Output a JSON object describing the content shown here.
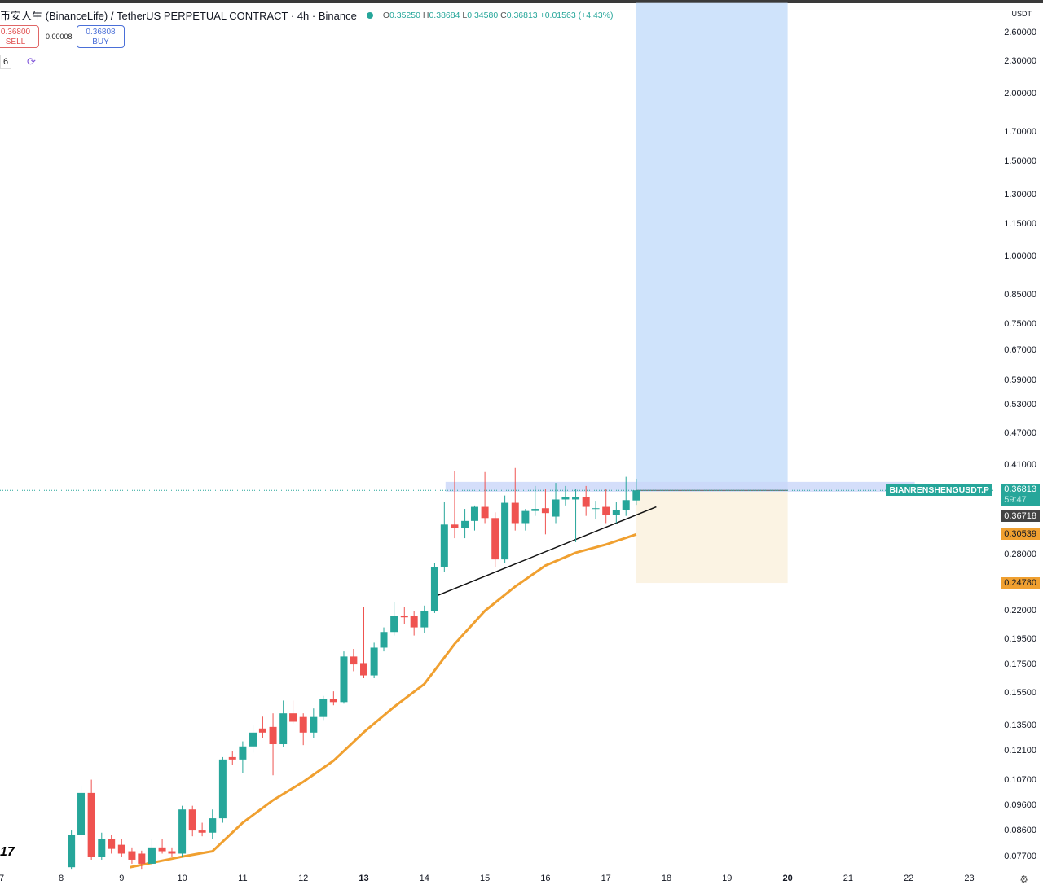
{
  "header": {
    "title": "币安人生 (BinanceLife) / TetherUS PERPETUAL CONTRACT · 4h · Binance",
    "o_label": "O",
    "o": "0.35250",
    "h_label": "H",
    "h": "0.38684",
    "l_label": "L",
    "l": "0.34580",
    "c_label": "C",
    "c": "0.36813",
    "change": "+0.01563 (+4.43%)"
  },
  "trade": {
    "sell_price": "0.36800",
    "sell_label": "SELL",
    "spread": "0.00008",
    "buy_price": "0.36808",
    "buy_label": "BUY",
    "misc": "6"
  },
  "axis": {
    "unit": "USDT",
    "price_labels": [
      "2.60000",
      "2.30000",
      "2.00000",
      "1.70000",
      "1.50000",
      "1.30000",
      "1.15000",
      "1.00000",
      "0.85000",
      "0.75000",
      "0.67000",
      "0.59000",
      "0.53000",
      "0.47000",
      "0.41000",
      "0.28000",
      "0.22000",
      "0.19500",
      "0.17500",
      "0.15500",
      "0.13500",
      "0.12100",
      "0.10700",
      "0.09600",
      "0.08600",
      "0.07700"
    ],
    "date_labels": [
      {
        "t": 7,
        "label": "7"
      },
      {
        "t": 8,
        "label": "8"
      },
      {
        "t": 9,
        "label": "9"
      },
      {
        "t": 10,
        "label": "10"
      },
      {
        "t": 11,
        "label": "11"
      },
      {
        "t": 12,
        "label": "12"
      },
      {
        "t": 13,
        "label": "13",
        "bold": true
      },
      {
        "t": 14,
        "label": "14"
      },
      {
        "t": 15,
        "label": "15"
      },
      {
        "t": 16,
        "label": "16"
      },
      {
        "t": 17,
        "label": "17"
      },
      {
        "t": 18,
        "label": "18"
      },
      {
        "t": 19,
        "label": "19"
      },
      {
        "t": 20,
        "label": "20",
        "bold": true
      },
      {
        "t": 21,
        "label": "21"
      },
      {
        "t": 22,
        "label": "22"
      },
      {
        "t": 23,
        "label": "23"
      }
    ]
  },
  "tags": {
    "symbol": "BIANRENSHENGUSDT.P",
    "last": "0.36813",
    "countdown": "59:47",
    "ma_price": "0.36718",
    "level1": "0.30539",
    "level2": "0.24780"
  },
  "colors": {
    "up": "#26a69a",
    "down": "#ef5350",
    "ma": "#f0a030",
    "target": "#cfe3fb",
    "stop": "#fbf3e3",
    "band": "#c9d6f9"
  },
  "chart_data": {
    "type": "candlestick",
    "scale": "log",
    "interval": "4h",
    "ylim": [
      0.077,
      2.6
    ],
    "xlim": [
      7,
      23
    ],
    "candles": [
      [
        8.17,
        0.0736,
        0.0861,
        0.0731,
        0.0844
      ],
      [
        8.33,
        0.0844,
        0.104,
        0.083,
        0.1011
      ],
      [
        8.5,
        0.1011,
        0.107,
        0.076,
        0.077
      ],
      [
        8.67,
        0.077,
        0.0853,
        0.076,
        0.083
      ],
      [
        8.83,
        0.083,
        0.0844,
        0.078,
        0.0796
      ],
      [
        9.0,
        0.081,
        0.083,
        0.077,
        0.078
      ],
      [
        9.17,
        0.0788,
        0.0801,
        0.0747,
        0.076
      ],
      [
        9.33,
        0.078,
        0.079,
        0.0731,
        0.0747
      ],
      [
        9.5,
        0.0747,
        0.083,
        0.074,
        0.0801
      ],
      [
        9.67,
        0.0801,
        0.083,
        0.078,
        0.0788
      ],
      [
        9.83,
        0.0788,
        0.0801,
        0.077,
        0.078
      ],
      [
        10.0,
        0.078,
        0.0957,
        0.077,
        0.0942
      ],
      [
        10.17,
        0.0942,
        0.0957,
        0.084,
        0.0861
      ],
      [
        10.33,
        0.0861,
        0.089,
        0.084,
        0.0853
      ],
      [
        10.5,
        0.0853,
        0.0942,
        0.083,
        0.0907
      ],
      [
        10.67,
        0.0907,
        0.1178,
        0.089,
        0.1166
      ],
      [
        10.83,
        0.1178,
        0.121,
        0.114,
        0.1166
      ],
      [
        11.0,
        0.1166,
        0.126,
        0.11,
        0.1233
      ],
      [
        11.17,
        0.1233,
        0.135,
        0.12,
        0.1308
      ],
      [
        11.33,
        0.1331,
        0.14,
        0.128,
        0.1308
      ],
      [
        11.5,
        0.134,
        0.142,
        0.109,
        0.1245
      ],
      [
        11.67,
        0.1245,
        0.15,
        0.123,
        0.142
      ],
      [
        11.83,
        0.142,
        0.15,
        0.136,
        0.137
      ],
      [
        12.0,
        0.1398,
        0.142,
        0.124,
        0.1308
      ],
      [
        12.17,
        0.1308,
        0.145,
        0.128,
        0.1398
      ],
      [
        12.33,
        0.1398,
        0.153,
        0.138,
        0.151
      ],
      [
        12.5,
        0.151,
        0.156,
        0.147,
        0.149
      ],
      [
        12.67,
        0.149,
        0.185,
        0.148,
        0.181
      ],
      [
        12.83,
        0.181,
        0.187,
        0.17,
        0.175
      ],
      [
        13.0,
        0.176,
        0.224,
        0.165,
        0.167
      ],
      [
        13.17,
        0.167,
        0.192,
        0.165,
        0.188
      ],
      [
        13.33,
        0.188,
        0.205,
        0.185,
        0.201
      ],
      [
        13.5,
        0.201,
        0.228,
        0.198,
        0.215
      ],
      [
        13.67,
        0.215,
        0.224,
        0.208,
        0.214
      ],
      [
        13.83,
        0.215,
        0.22,
        0.198,
        0.205
      ],
      [
        14.0,
        0.205,
        0.225,
        0.2,
        0.22
      ],
      [
        14.17,
        0.22,
        0.27,
        0.218,
        0.265
      ],
      [
        14.33,
        0.265,
        0.35,
        0.26,
        0.318
      ],
      [
        14.5,
        0.318,
        0.4,
        0.3,
        0.313
      ],
      [
        14.67,
        0.313,
        0.34,
        0.3,
        0.323
      ],
      [
        14.83,
        0.323,
        0.345,
        0.31,
        0.343
      ],
      [
        15.0,
        0.343,
        0.398,
        0.32,
        0.327
      ],
      [
        15.17,
        0.327,
        0.335,
        0.265,
        0.274
      ],
      [
        15.33,
        0.274,
        0.36,
        0.27,
        0.349
      ],
      [
        15.5,
        0.349,
        0.405,
        0.31,
        0.32
      ],
      [
        15.67,
        0.32,
        0.34,
        0.31,
        0.337
      ],
      [
        15.83,
        0.337,
        0.375,
        0.33,
        0.34
      ],
      [
        16.0,
        0.341,
        0.37,
        0.305,
        0.334
      ],
      [
        16.17,
        0.329,
        0.38,
        0.32,
        0.354
      ],
      [
        16.33,
        0.354,
        0.375,
        0.345,
        0.358
      ],
      [
        16.5,
        0.354,
        0.37,
        0.295,
        0.358
      ],
      [
        16.67,
        0.358,
        0.375,
        0.33,
        0.343
      ],
      [
        16.83,
        0.34,
        0.352,
        0.325,
        0.341
      ],
      [
        17.0,
        0.343,
        0.37,
        0.32,
        0.331
      ],
      [
        17.17,
        0.331,
        0.35,
        0.32,
        0.338
      ],
      [
        17.33,
        0.338,
        0.39,
        0.33,
        0.353
      ],
      [
        17.5,
        0.3525,
        0.38684,
        0.3458,
        0.36813
      ]
    ],
    "ma": [
      [
        9.14,
        0.0736
      ],
      [
        10.0,
        0.077
      ],
      [
        10.5,
        0.0788
      ],
      [
        11.0,
        0.089
      ],
      [
        11.5,
        0.098
      ],
      [
        12.0,
        0.106
      ],
      [
        12.5,
        0.116
      ],
      [
        13.0,
        0.131
      ],
      [
        13.5,
        0.146
      ],
      [
        14.0,
        0.161
      ],
      [
        14.5,
        0.191
      ],
      [
        15.0,
        0.22
      ],
      [
        15.5,
        0.244
      ],
      [
        16.0,
        0.267
      ],
      [
        16.5,
        0.282
      ],
      [
        17.0,
        0.292
      ],
      [
        17.5,
        0.305
      ]
    ],
    "trendline": [
      [
        14.22,
        0.235
      ],
      [
        17.83,
        0.343
      ]
    ],
    "position": {
      "start": 17.5,
      "end": 20.0,
      "entry": 0.36813,
      "target": 2.95,
      "stop": 0.2478
    },
    "resistance_zone": {
      "start": 14.35,
      "end": 22.1,
      "low": 0.366,
      "high": 0.3816
    },
    "last_price": 0.36813
  }
}
